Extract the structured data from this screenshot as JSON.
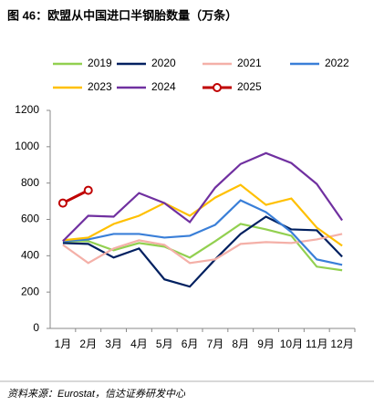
{
  "chart_data": {
    "type": "line",
    "title": "图 46：欧盟从中国进口半钢胎数量（万条）",
    "source": "资料来源：Eurostat，信达证券研发中心",
    "categories": [
      "1月",
      "2月",
      "3月",
      "4月",
      "5月",
      "6月",
      "7月",
      "8月",
      "9月",
      "10月",
      "11月",
      "12月"
    ],
    "series": [
      {
        "name": "2019",
        "color": "#92d050",
        "values": [
          480,
          480,
          430,
          470,
          450,
          390,
          480,
          575,
          545,
          510,
          340,
          320
        ]
      },
      {
        "name": "2020",
        "color": "#002060",
        "values": [
          470,
          465,
          390,
          440,
          270,
          230,
          380,
          520,
          615,
          545,
          540,
          395
        ]
      },
      {
        "name": "2021",
        "color": "#f4b0a8",
        "values": [
          460,
          360,
          440,
          485,
          460,
          360,
          380,
          465,
          475,
          470,
          490,
          520
        ]
      },
      {
        "name": "2022",
        "color": "#3a7fd8",
        "values": [
          480,
          490,
          520,
          520,
          500,
          510,
          570,
          705,
          640,
          530,
          380,
          350
        ]
      },
      {
        "name": "2023",
        "color": "#ffc000",
        "values": [
          485,
          500,
          575,
          620,
          690,
          620,
          720,
          790,
          680,
          715,
          555,
          455
        ]
      },
      {
        "name": "2024",
        "color": "#7030a0",
        "values": [
          480,
          620,
          615,
          745,
          690,
          585,
          775,
          905,
          965,
          910,
          795,
          595
        ]
      },
      {
        "name": "2025",
        "color": "#c00000",
        "markers": true,
        "values": [
          690,
          760,
          null,
          null,
          null,
          null,
          null,
          null,
          null,
          null,
          null,
          null
        ]
      }
    ],
    "ylim": [
      0,
      1200
    ],
    "yticks": [
      0,
      200,
      400,
      600,
      800,
      1000,
      1200
    ],
    "grid": false
  }
}
